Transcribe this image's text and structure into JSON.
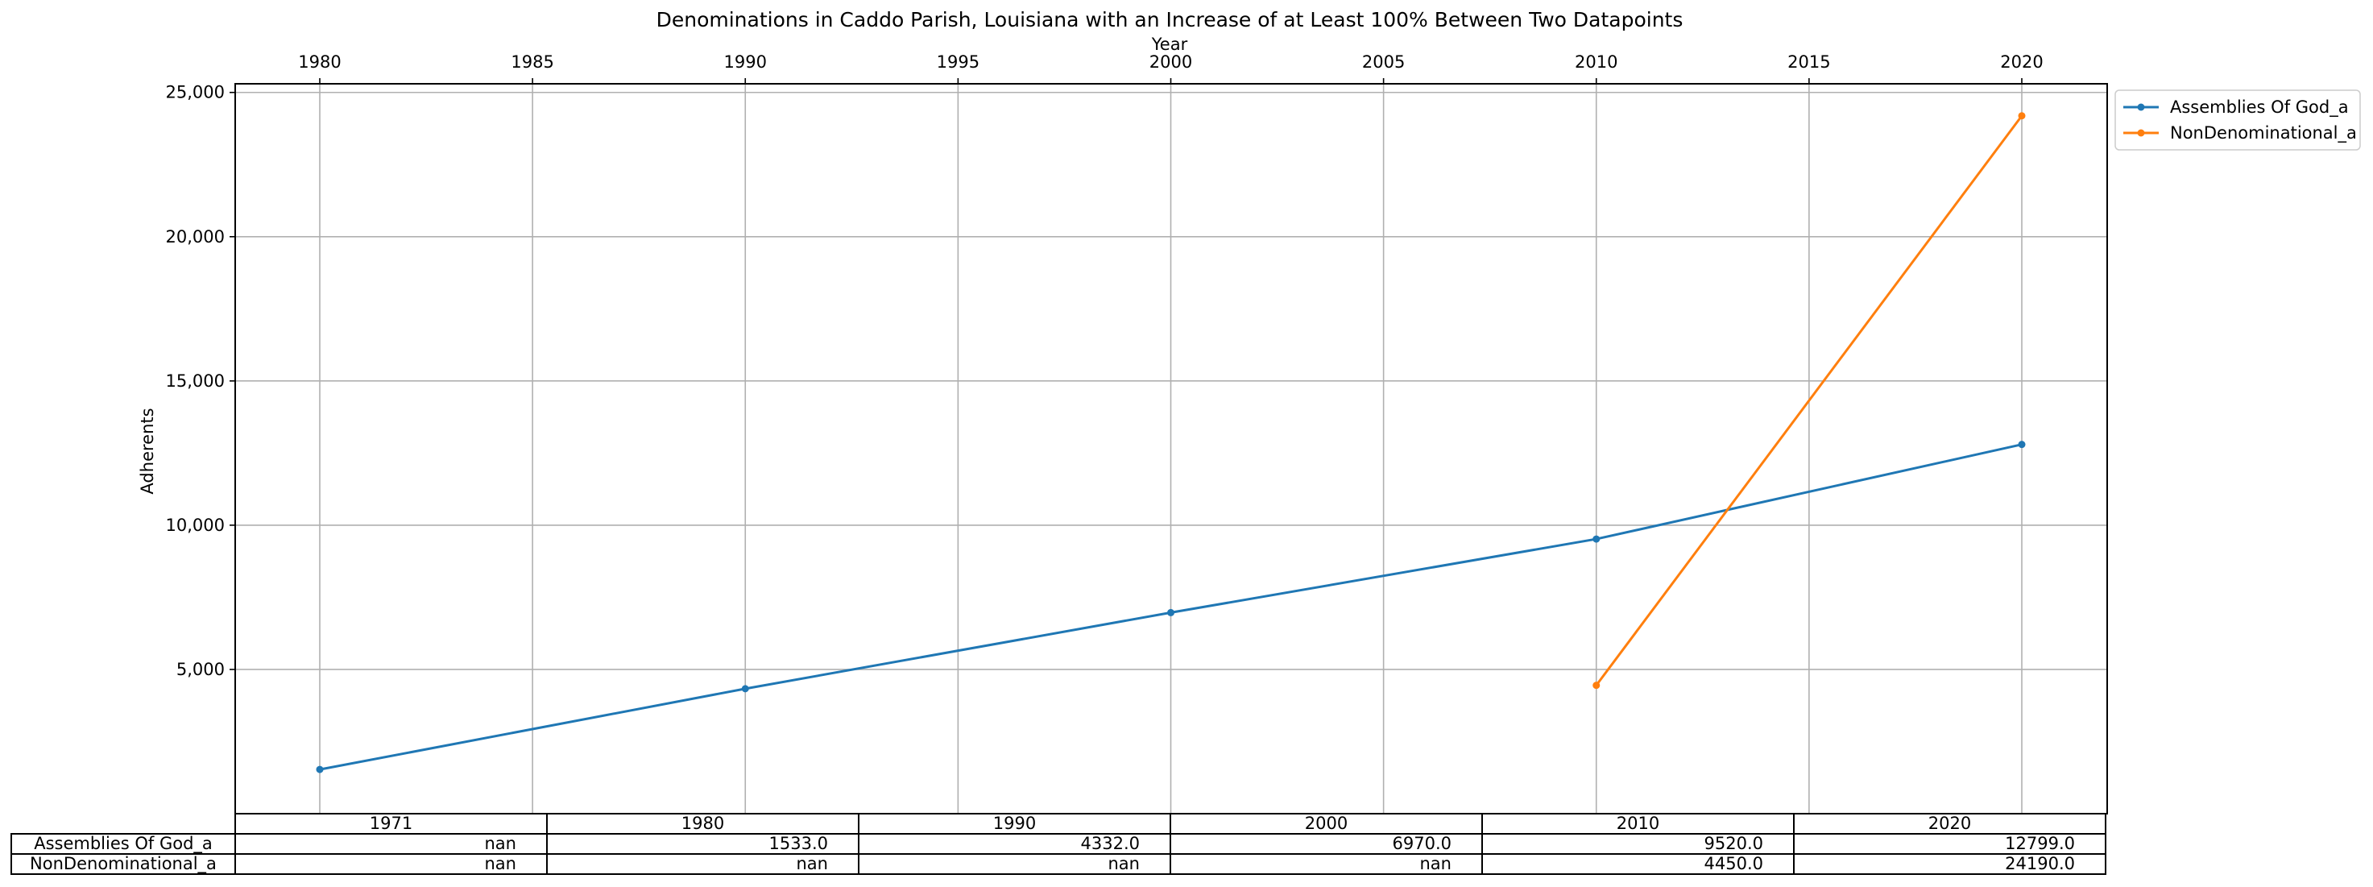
{
  "chart_data": {
    "type": "line",
    "title": "Denominations in Caddo Parish, Louisiana with an Increase of at Least 100% Between Two Datapoints",
    "xlabel": "Year",
    "ylabel": "Adherents",
    "x_axis_position": "top",
    "x_ticks": [
      1980,
      1985,
      1990,
      1995,
      2000,
      2005,
      2010,
      2015,
      2020
    ],
    "x_tick_labels": [
      "1980",
      "1985",
      "1990",
      "1995",
      "2000",
      "2005",
      "2010",
      "2015",
      "2020"
    ],
    "y_ticks": [
      5000,
      10000,
      15000,
      20000,
      25000
    ],
    "y_tick_labels": [
      "5,000",
      "10,000",
      "15,000",
      "20,000",
      "25,000"
    ],
    "xlim": [
      1976,
      2020
    ],
    "ylim": [
      0,
      25300
    ],
    "grid": true,
    "legend_position": "outside-top-right",
    "series": [
      {
        "name": "Assemblies Of God_a",
        "color": "#1f77b4",
        "x": [
          1980,
          1990,
          2000,
          2010,
          2020
        ],
        "y": [
          1533,
          4332,
          6970,
          9520,
          12799
        ]
      },
      {
        "name": "NonDenominational_a",
        "color": "#ff7f0e",
        "x": [
          2010,
          2020
        ],
        "y": [
          4450,
          24190
        ]
      }
    ],
    "table": {
      "columns": [
        "1971",
        "1980",
        "1990",
        "2000",
        "2010",
        "2020"
      ],
      "rows": [
        {
          "label": "Assemblies Of God_a",
          "cells": [
            "nan",
            "1533.0",
            "4332.0",
            "6970.0",
            "9520.0",
            "12799.0"
          ]
        },
        {
          "label": "NonDenominational_a",
          "cells": [
            "nan",
            "nan",
            "nan",
            "nan",
            "4450.0",
            "24190.0"
          ]
        }
      ]
    }
  }
}
